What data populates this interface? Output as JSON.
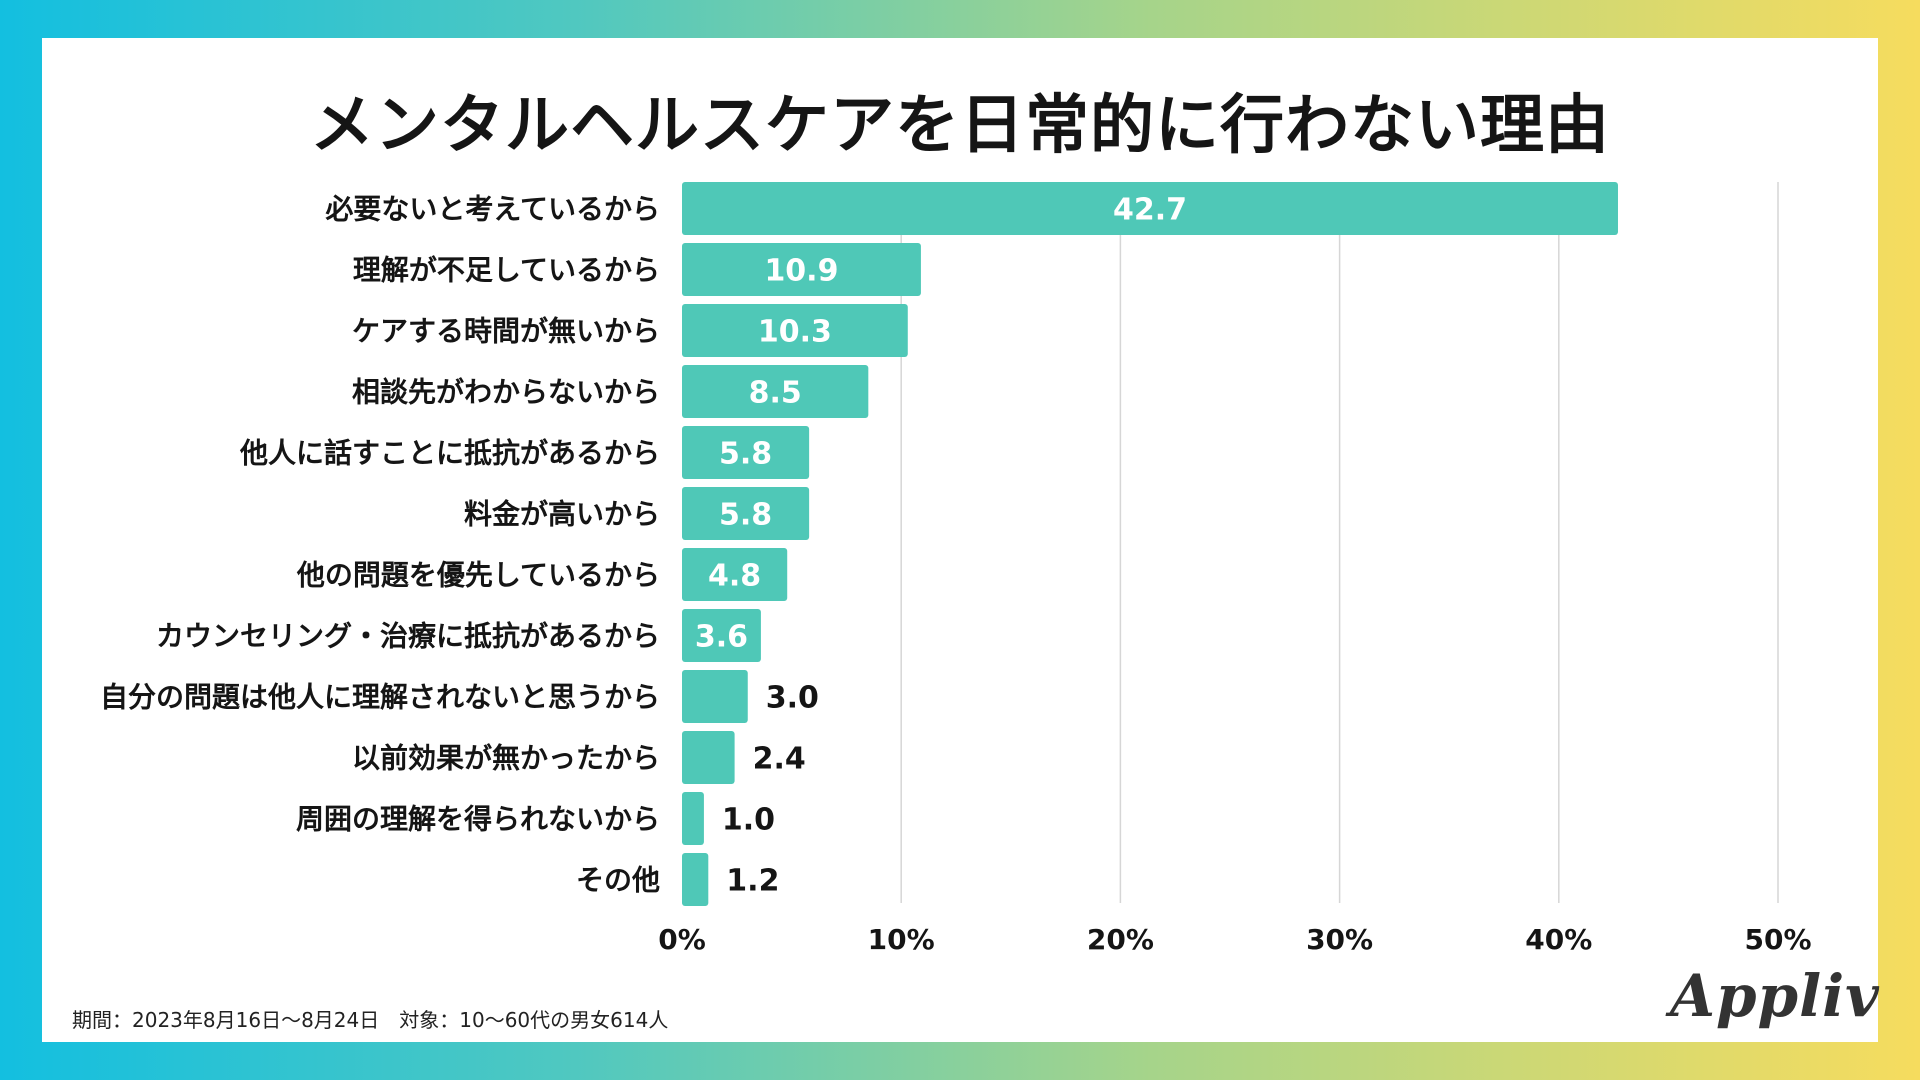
{
  "footnote": "期間：2023年8月16日〜8月24日　対象：10〜60代の男女614人",
  "logo": "Appliv",
  "colors": {
    "bar": "#4fc8b7",
    "label_inside": "#ffffff",
    "label_outside": "#151515",
    "grid": "#d6d6d6",
    "text": "#151515"
  },
  "chart_data": {
    "type": "bar",
    "orientation": "horizontal",
    "title": "メンタルヘルスケアを日常的に行わない理由",
    "categories": [
      "必要ないと考えているから",
      "理解が不足しているから",
      "ケアする時間が無いから",
      "相談先がわからないから",
      "他人に話すことに抵抗があるから",
      "料金が高いから",
      "他の問題を優先しているから",
      "カウンセリング・治療に抵抗があるから",
      "自分の問題は他人に理解されないと思うから",
      "以前効果が無かったから",
      "周囲の理解を得られないから",
      "その他"
    ],
    "values": [
      42.7,
      10.9,
      10.3,
      8.5,
      5.8,
      5.8,
      4.8,
      3.6,
      3.0,
      2.4,
      1.0,
      1.2
    ],
    "value_labels": [
      "42.7",
      "10.9",
      "10.3",
      "8.5",
      "5.8",
      "5.8",
      "4.8",
      "3.6",
      "3.0",
      "2.4",
      "1.0",
      "1.2"
    ],
    "xlim": [
      0,
      50
    ],
    "xticks": [
      0,
      10,
      20,
      30,
      40,
      50
    ],
    "xtick_labels": [
      "0%",
      "10%",
      "20%",
      "30%",
      "40%",
      "50%"
    ],
    "grid": true,
    "xlabel": "",
    "ylabel": ""
  }
}
